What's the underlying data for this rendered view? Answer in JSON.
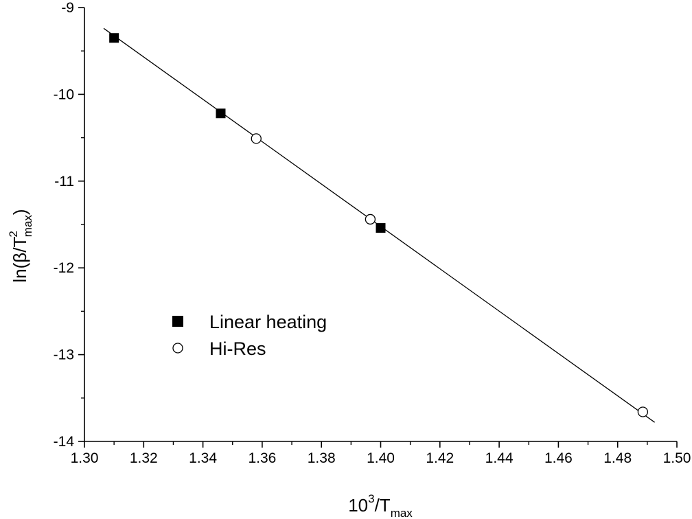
{
  "chart_data": {
    "type": "scatter",
    "x_ticks": [
      "1.30",
      "1.32",
      "1.34",
      "1.36",
      "1.38",
      "1.40",
      "1.42",
      "1.44",
      "1.46",
      "1.48",
      "1.50"
    ],
    "y_ticks": [
      "-9",
      "-10",
      "-11",
      "-12",
      "-13",
      "-14"
    ],
    "xlim": [
      1.3,
      1.5
    ],
    "ylim": [
      -14,
      -9
    ],
    "xlabel": {
      "base": "10",
      "sup": "3",
      "mid": "/T",
      "sub": "max"
    },
    "ylabel": {
      "pre": "ln(β/T",
      "sup": "2",
      "sub": "max",
      "post": ")"
    },
    "series": [
      {
        "name": "Linear heating",
        "marker": "filled-square",
        "points": [
          {
            "x": 1.31,
            "y": -9.35
          },
          {
            "x": 1.346,
            "y": -10.22
          },
          {
            "x": 1.4,
            "y": -11.54
          }
        ]
      },
      {
        "name": "Hi-Res",
        "marker": "open-circle",
        "points": [
          {
            "x": 1.358,
            "y": -10.51
          },
          {
            "x": 1.3965,
            "y": -11.44
          },
          {
            "x": 1.4885,
            "y": -13.66
          }
        ]
      }
    ],
    "fit_line": {
      "x": [
        1.3065,
        1.4925
      ],
      "y": [
        -9.24,
        -13.78
      ]
    },
    "legend_position": "lower-left",
    "grid": false
  }
}
